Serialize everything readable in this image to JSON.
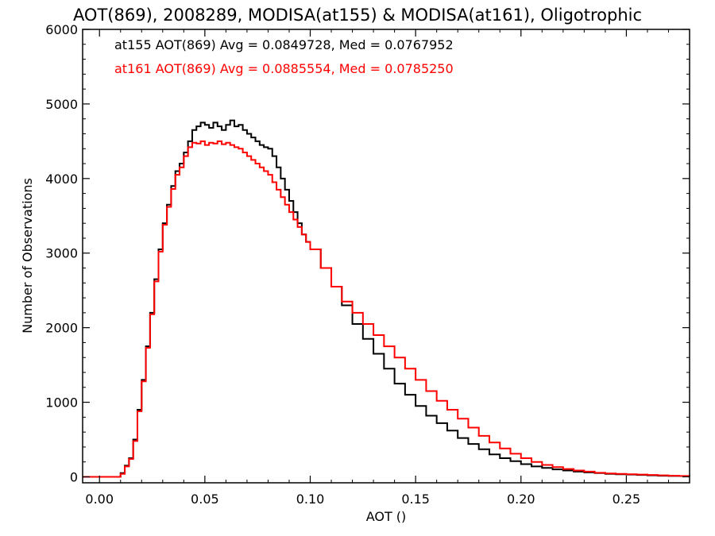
{
  "chart_data": {
    "type": "line",
    "title": "AOT(869), 2008289, MODISA(at155) & MODISA(at161), Oligotrophic",
    "xlabel": "AOT ()",
    "ylabel": "Number of Observations",
    "xlim": [
      -0.008,
      0.28
    ],
    "ylim": [
      -80,
      6000
    ],
    "xticks": [
      0.0,
      0.05,
      0.1,
      0.15,
      0.2,
      0.25
    ],
    "xtick_labels": [
      "0.00",
      "0.05",
      "0.10",
      "0.15",
      "0.20",
      "0.25"
    ],
    "yticks": [
      0,
      1000,
      2000,
      3000,
      4000,
      5000,
      6000
    ],
    "ytick_labels": [
      "0",
      "1000",
      "2000",
      "3000",
      "4000",
      "5000",
      "6000"
    ],
    "grid": false,
    "annotations": [
      {
        "text": "at155 AOT(869) Avg = 0.0849728, Med = 0.0767952",
        "color": "#000000"
      },
      {
        "text": "at161 AOT(869) Avg = 0.0885554, Med = 0.0785250",
        "color": "#ff0000"
      }
    ],
    "series": [
      {
        "color": "#000000",
        "x": [
          -0.008,
          0.008,
          0.01,
          0.012,
          0.014,
          0.016,
          0.018,
          0.02,
          0.022,
          0.024,
          0.026,
          0.028,
          0.03,
          0.032,
          0.034,
          0.036,
          0.038,
          0.04,
          0.042,
          0.044,
          0.046,
          0.048,
          0.05,
          0.052,
          0.054,
          0.056,
          0.058,
          0.06,
          0.062,
          0.064,
          0.066,
          0.068,
          0.07,
          0.072,
          0.074,
          0.076,
          0.078,
          0.08,
          0.082,
          0.084,
          0.086,
          0.088,
          0.09,
          0.092,
          0.094,
          0.096,
          0.098,
          0.1,
          0.105,
          0.11,
          0.115,
          0.12,
          0.125,
          0.13,
          0.135,
          0.14,
          0.145,
          0.15,
          0.155,
          0.16,
          0.165,
          0.17,
          0.175,
          0.18,
          0.185,
          0.19,
          0.195,
          0.2,
          0.205,
          0.21,
          0.215,
          0.22,
          0.225,
          0.23,
          0.235,
          0.24,
          0.245,
          0.25,
          0.255,
          0.26,
          0.265,
          0.27,
          0.275,
          0.28
        ],
        "y": [
          0,
          0,
          50,
          150,
          250,
          500,
          900,
          1300,
          1750,
          2200,
          2650,
          3050,
          3400,
          3650,
          3900,
          4100,
          4200,
          4350,
          4500,
          4650,
          4700,
          4750,
          4720,
          4680,
          4750,
          4700,
          4650,
          4720,
          4780,
          4700,
          4720,
          4650,
          4600,
          4550,
          4500,
          4450,
          4420,
          4400,
          4300,
          4150,
          4000,
          3850,
          3700,
          3550,
          3400,
          3250,
          3150,
          3050,
          2800,
          2550,
          2300,
          2050,
          1850,
          1650,
          1450,
          1250,
          1100,
          950,
          820,
          720,
          620,
          520,
          440,
          370,
          300,
          250,
          210,
          170,
          140,
          120,
          100,
          85,
          70,
          60,
          50,
          40,
          35,
          30,
          25,
          20,
          15,
          12,
          10,
          8
        ]
      },
      {
        "color": "#ff0000",
        "x": [
          -0.008,
          0.008,
          0.01,
          0.012,
          0.014,
          0.016,
          0.018,
          0.02,
          0.022,
          0.024,
          0.026,
          0.028,
          0.03,
          0.032,
          0.034,
          0.036,
          0.038,
          0.04,
          0.042,
          0.044,
          0.046,
          0.048,
          0.05,
          0.052,
          0.054,
          0.056,
          0.058,
          0.06,
          0.062,
          0.064,
          0.066,
          0.068,
          0.07,
          0.072,
          0.074,
          0.076,
          0.078,
          0.08,
          0.082,
          0.084,
          0.086,
          0.088,
          0.09,
          0.092,
          0.094,
          0.096,
          0.098,
          0.1,
          0.105,
          0.11,
          0.115,
          0.12,
          0.125,
          0.13,
          0.135,
          0.14,
          0.145,
          0.15,
          0.155,
          0.16,
          0.165,
          0.17,
          0.175,
          0.18,
          0.185,
          0.19,
          0.195,
          0.2,
          0.205,
          0.21,
          0.215,
          0.22,
          0.225,
          0.23,
          0.235,
          0.24,
          0.245,
          0.25,
          0.255,
          0.26,
          0.265,
          0.27,
          0.275,
          0.28
        ],
        "y": [
          0,
          0,
          40,
          140,
          240,
          480,
          880,
          1280,
          1730,
          2180,
          2620,
          3020,
          3380,
          3620,
          3860,
          4050,
          4150,
          4300,
          4420,
          4480,
          4470,
          4500,
          4450,
          4480,
          4470,
          4500,
          4460,
          4480,
          4450,
          4420,
          4400,
          4350,
          4300,
          4250,
          4200,
          4150,
          4100,
          4050,
          3950,
          3850,
          3750,
          3650,
          3550,
          3450,
          3350,
          3250,
          3150,
          3050,
          2800,
          2550,
          2350,
          2200,
          2050,
          1900,
          1750,
          1600,
          1450,
          1300,
          1150,
          1020,
          900,
          780,
          660,
          550,
          460,
          380,
          310,
          250,
          200,
          160,
          130,
          105,
          85,
          70,
          55,
          45,
          40,
          35,
          30,
          25,
          20,
          15,
          12,
          10
        ]
      }
    ]
  }
}
